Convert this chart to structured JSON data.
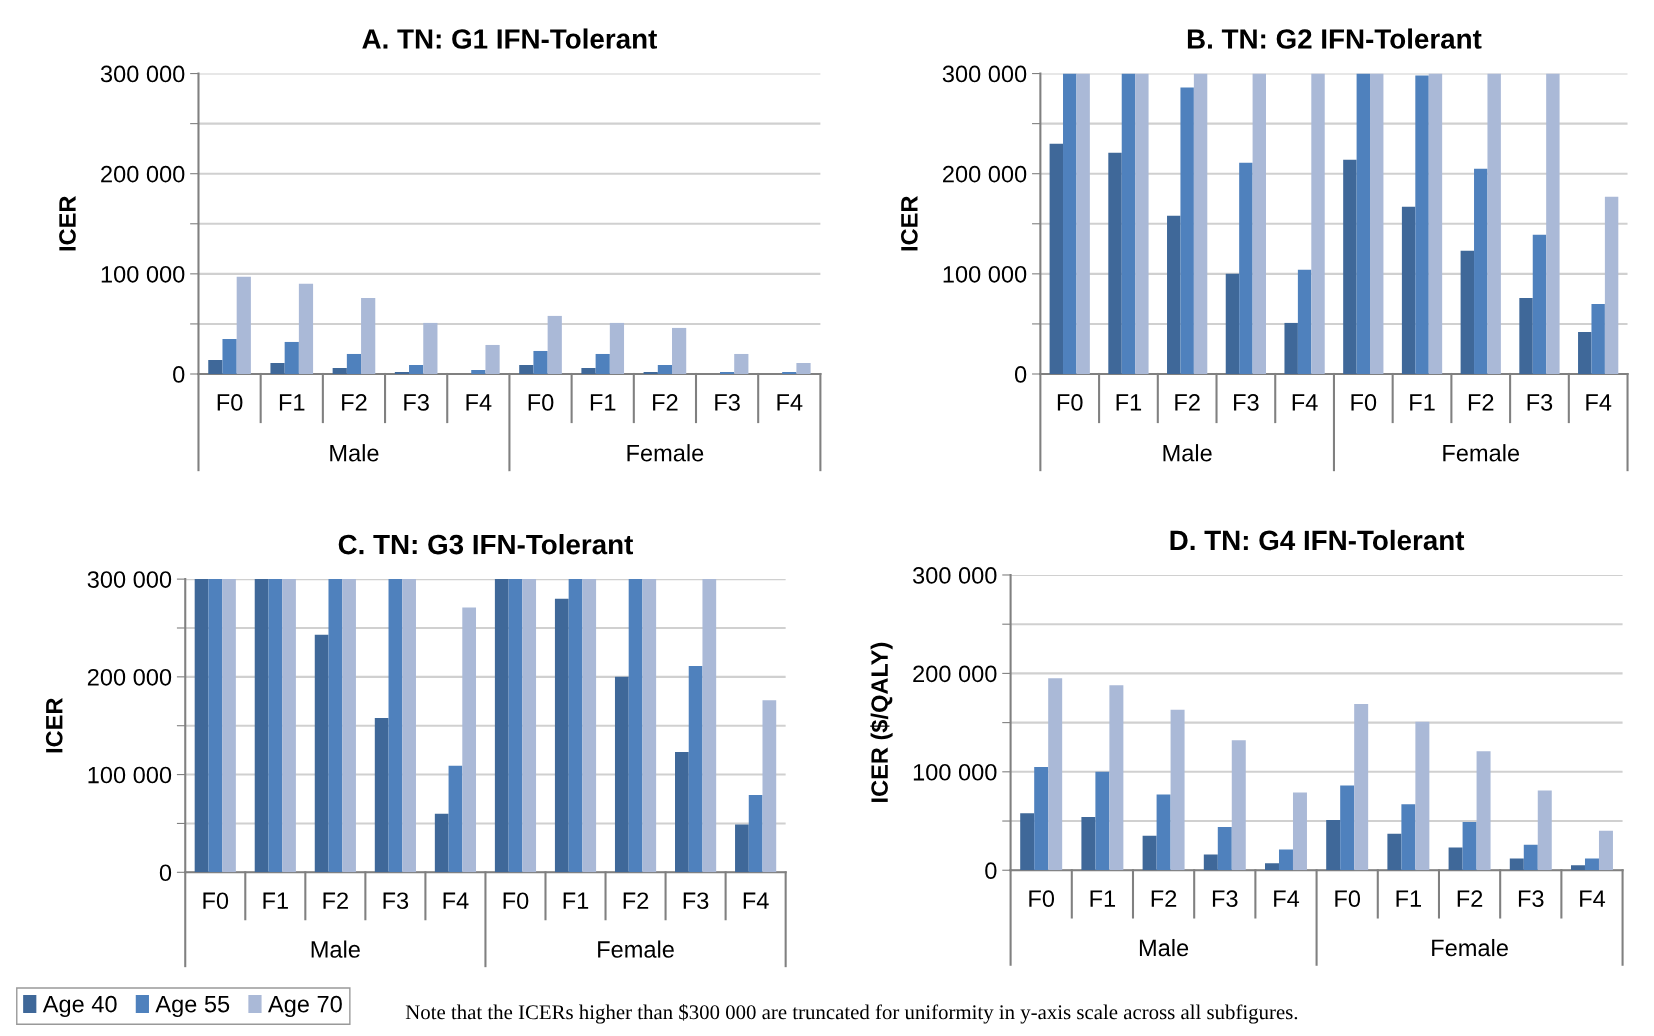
{
  "chart_data": [
    {
      "type": "bar",
      "title": "A. TN: G1 IFN-Tolerant",
      "ylabel": "ICER",
      "categories": [
        "F0",
        "F1",
        "F2",
        "F3",
        "F4",
        "F0",
        "F1",
        "F2",
        "F3",
        "F4"
      ],
      "series": [
        {
          "color": "#3f6899",
          "values": [
            14000,
            11000,
            6000,
            2000,
            null,
            9000,
            6000,
            2000,
            null,
            null
          ]
        },
        {
          "color": "#4f81bd",
          "values": [
            35000,
            32000,
            20000,
            9000,
            4000,
            23000,
            20000,
            9000,
            2000,
            2000
          ]
        },
        {
          "color": "#aab9d7",
          "values": [
            97000,
            90000,
            76000,
            51000,
            29000,
            58000,
            51000,
            46000,
            20000,
            11000
          ]
        }
      ],
      "ylim": [
        0,
        300000
      ],
      "yticks": [
        0,
        {
          "value": 50000,
          "label": null
        },
        {
          "value": 100000,
          "label": "100 000"
        },
        {
          "value": 150000,
          "label": null
        },
        {
          "value": 200000,
          "label": "200 000"
        },
        {
          "value": 250000,
          "label": null
        },
        {
          "value": 300000,
          "label": "300 000"
        }
      ],
      "grid": "y",
      "annotations": [
        "Male",
        "Female"
      ]
    },
    {
      "type": "bar",
      "title": "B. TN: G2 IFN-Tolerant",
      "ylabel": "ICER",
      "categories": [
        "F0",
        "F1",
        "F2",
        "F3",
        "F4",
        "F0",
        "F1",
        "F2",
        "F3",
        "F4"
      ],
      "series": [
        {
          "color": "#3f6899",
          "values": [
            230000,
            221000,
            158000,
            100000,
            51000,
            214000,
            167000,
            123000,
            76000,
            42000
          ]
        },
        {
          "color": "#4f81bd",
          "values": [
            300000,
            300000,
            286000,
            211000,
            104000,
            300000,
            298000,
            205000,
            139000,
            70000
          ]
        },
        {
          "color": "#aab9d7",
          "values": [
            300000,
            300000,
            300000,
            300000,
            300000,
            300000,
            300000,
            300000,
            300000,
            177000
          ]
        }
      ],
      "ylim": [
        0,
        300000
      ],
      "yticks": [
        0,
        {
          "value": 50000,
          "label": null
        },
        {
          "value": 100000,
          "label": "100 000"
        },
        {
          "value": 150000,
          "label": null
        },
        {
          "value": 200000,
          "label": "200 000"
        },
        {
          "value": 250000,
          "label": null
        },
        {
          "value": 300000,
          "label": "300 000"
        }
      ],
      "grid": "y",
      "annotations": [
        "Male",
        "Female"
      ]
    },
    {
      "type": "bar",
      "title": "C. TN: G3 IFN-Tolerant",
      "ylabel": "ICER",
      "categories": [
        "F0",
        "F1",
        "F2",
        "F3",
        "F4",
        "F0",
        "F1",
        "F2",
        "F3",
        "F4"
      ],
      "series": [
        {
          "name": "Age 40",
          "color": "#3f6899",
          "values": [
            300000,
            300000,
            243000,
            158000,
            60000,
            300000,
            280000,
            200000,
            123000,
            49000
          ]
        },
        {
          "name": "Age 55",
          "color": "#4f81bd",
          "values": [
            300000,
            300000,
            300000,
            300000,
            109000,
            300000,
            300000,
            300000,
            211000,
            79000
          ]
        },
        {
          "name": "Age 70",
          "color": "#aab9d7",
          "values": [
            300000,
            300000,
            300000,
            300000,
            271000,
            300000,
            300000,
            300000,
            300000,
            176000
          ]
        }
      ],
      "ylim": [
        0,
        300000
      ],
      "yticks": [
        0,
        {
          "value": 50000,
          "label": null
        },
        {
          "value": 100000,
          "label": "100 000"
        },
        {
          "value": 150000,
          "label": null
        },
        {
          "value": 200000,
          "label": "200 000"
        },
        {
          "value": 250000,
          "label": null
        },
        {
          "value": 300000,
          "label": "300 000"
        }
      ],
      "grid": "y",
      "legend": "bottom left",
      "annotations": [
        "Male",
        "Female"
      ]
    },
    {
      "type": "bar",
      "title": "D. TN: G4 IFN-Tolerant",
      "ylabel": "ICER ($/QALY)",
      "categories": [
        "F0",
        "F1",
        "F2",
        "F3",
        "F4",
        "F0",
        "F1",
        "F2",
        "F3",
        "F4"
      ],
      "series": [
        {
          "color": "#3f6899",
          "values": [
            58000,
            54000,
            35000,
            16000,
            7000,
            51000,
            37000,
            23000,
            12000,
            5000
          ]
        },
        {
          "color": "#4f81bd",
          "values": [
            105000,
            100000,
            77000,
            44000,
            21000,
            86000,
            67000,
            49000,
            26000,
            12000
          ]
        },
        {
          "color": "#aab9d7",
          "values": [
            195000,
            188000,
            163000,
            132000,
            79000,
            169000,
            151000,
            121000,
            81000,
            40000
          ]
        }
      ],
      "ylim": [
        0,
        300000
      ],
      "yticks": [
        0,
        {
          "value": 50000,
          "label": null
        },
        {
          "value": 100000,
          "label": "100 000"
        },
        {
          "value": 150000,
          "label": null
        },
        {
          "value": 200000,
          "label": "200 000"
        },
        {
          "value": 250000,
          "label": null
        },
        {
          "value": 300000,
          "label": "300 000"
        }
      ],
      "grid": "y",
      "annotations": [
        "Male",
        "Female",
        "Note that the ICERs higher than $300 000 are truncated for uniformity in y-axis scale across all subfigures."
      ]
    }
  ]
}
